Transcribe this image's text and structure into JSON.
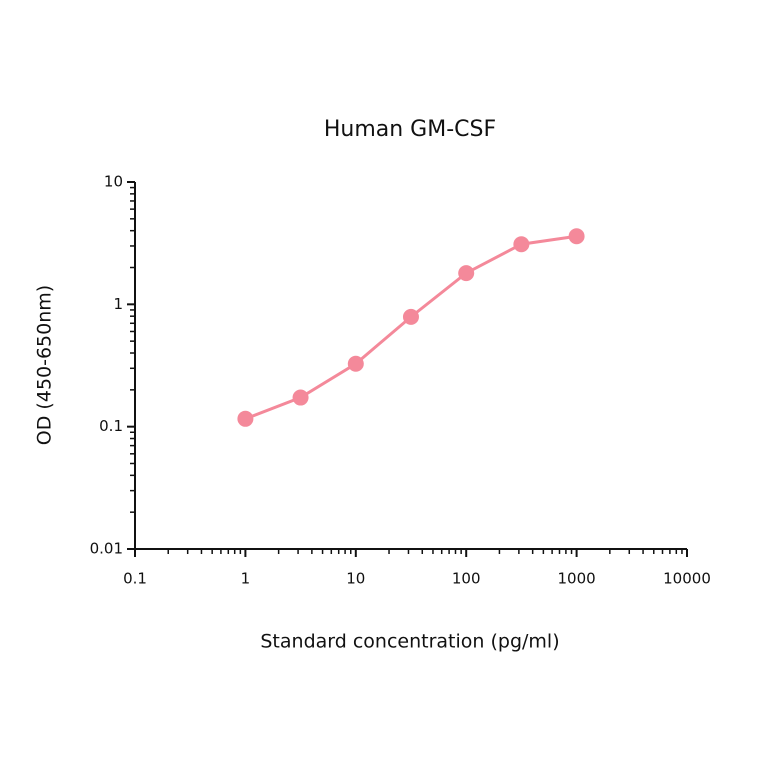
{
  "chart_data": {
    "type": "line",
    "title": "Human GM-CSF",
    "x_label": "Standard concentration (pg/ml)",
    "y_label": "OD (450-650nm)",
    "x": [
      1,
      3.16,
      10,
      31.6,
      100,
      316,
      1000
    ],
    "series": [
      {
        "name": "Human GM-CSF",
        "color": "#f4899a",
        "values": [
          0.116,
          0.173,
          0.327,
          0.79,
          1.8,
          3.1,
          3.6
        ]
      }
    ],
    "xlim": [
      0.1,
      10000
    ],
    "ylim": [
      0.01,
      10
    ],
    "xticks": [
      0.1,
      1,
      10,
      100,
      1000,
      10000
    ],
    "yticks": [
      0.01,
      0.1,
      1,
      10
    ],
    "xscale": "log",
    "yscale": "log",
    "legend": false,
    "grid": false,
    "minor_ticks": true
  }
}
